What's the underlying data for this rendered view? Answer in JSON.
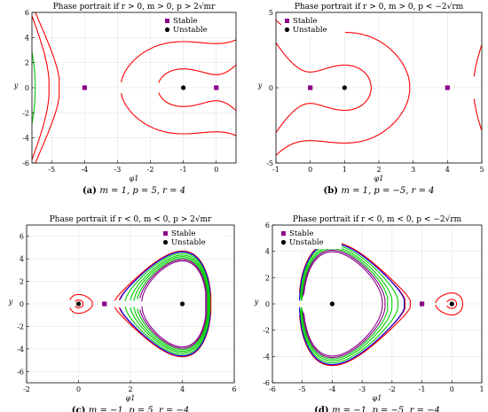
{
  "chart_data": [
    {
      "type": "line",
      "panel": "a",
      "title": "Phase portrait if r > 0, m > 0, p > 2√mr",
      "caption_tag": "(a)",
      "caption": "m = 1, p = 5, r = 4",
      "xlabel": "φ1",
      "ylabel": "y",
      "xlim": [
        -5.6,
        0.6
      ],
      "ylim": [
        -6,
        6
      ],
      "xticks": [
        "-5",
        "-4",
        "-3",
        "-2",
        "-1",
        "0"
      ],
      "yticks": [
        "-6",
        "-4",
        "-2",
        "0",
        "2",
        "4",
        "6"
      ],
      "grid": true,
      "legend": {
        "position": "top-right",
        "items": [
          "Stable",
          "Unstable"
        ]
      },
      "equilibria": {
        "stable": [
          [
            -4,
            0
          ],
          [
            0,
            0
          ]
        ],
        "unstable": [
          [
            -1,
            0
          ]
        ]
      },
      "series": [
        {
          "color": "#00cc00",
          "values": [
            2,
            3.2,
            4.1,
            4.5
          ]
        },
        {
          "color": "#ff0000",
          "values": [
            0.4,
            0.9,
            4.7,
            5.0
          ]
        },
        {
          "color": "#0000ff",
          "values": [
            4.62
          ]
        },
        {
          "color": "#00cccc",
          "values": [
            4.58
          ]
        }
      ]
    },
    {
      "type": "line",
      "panel": "b",
      "title": "Phase portrait if r > 0, m > 0, p < −2√rm",
      "caption_tag": "(b)",
      "caption": "m = 1, p = −5, r = 4",
      "xlabel": "φ1",
      "ylabel": "y",
      "xlim": [
        -1,
        5
      ],
      "ylim": [
        -5,
        5
      ],
      "xticks": [
        "-1",
        "0",
        "1",
        "2",
        "3",
        "4",
        "5"
      ],
      "yticks": [
        "-5",
        "0",
        "5"
      ],
      "grid": true,
      "legend": {
        "position": "top-left",
        "items": [
          "Stable",
          "Unstable"
        ]
      },
      "equilibria": {
        "stable": [
          [
            0,
            0
          ],
          [
            4,
            0
          ]
        ],
        "unstable": [
          [
            1,
            0
          ]
        ]
      },
      "series": [
        {
          "color": "#ff0000",
          "values": [
            0.4,
            0.9,
            1.8,
            2.7,
            3.6,
            4.3
          ]
        },
        {
          "color": "#00cc00",
          "values": [
            4.7,
            4.9
          ]
        },
        {
          "color": "#0000ff",
          "values": [
            4.62
          ]
        },
        {
          "color": "#00cccc",
          "values": [
            4.58
          ]
        }
      ]
    },
    {
      "type": "line",
      "panel": "c",
      "title": "Phase portrait if r < 0, m < 0, p > 2√mr",
      "caption_tag": "(c)",
      "caption": "m = −1, p = 5, r = −4",
      "xlabel": "φ1",
      "ylabel": "y",
      "xlim": [
        -2,
        6
      ],
      "ylim": [
        -7,
        7
      ],
      "xticks": [
        "-2",
        "0",
        "2",
        "4",
        "6"
      ],
      "yticks": [
        "-6",
        "-4",
        "-2",
        "0",
        "2",
        "4",
        "6"
      ],
      "grid": true,
      "legend": {
        "position": "top-right",
        "items": [
          "Stable",
          "Unstable"
        ]
      },
      "equilibria": {
        "stable": [
          [
            1,
            0
          ]
        ],
        "unstable": [
          [
            0,
            0
          ],
          [
            4,
            0
          ]
        ]
      },
      "series": [
        {
          "color": "#ff0000",
          "values": [
            0.4,
            0.9
          ]
        },
        {
          "color": "#0000ff",
          "values": [
            1.0
          ]
        },
        {
          "color": "#00cc00",
          "values": [
            2,
            3.2,
            4.2,
            5.2
          ]
        },
        {
          "color": "#880088",
          "values": [
            6.0,
            6.8
          ]
        }
      ]
    },
    {
      "type": "line",
      "panel": "d",
      "title": "Phase portrait if r < 0, m < 0, p < −2√rm",
      "caption_tag": "(d)",
      "caption": "m = −1, p = −5, r = −4",
      "xlabel": "φ1",
      "ylabel": "y",
      "xlim": [
        -6,
        1
      ],
      "ylim": [
        -6,
        6
      ],
      "xticks": [
        "-6",
        "-5",
        "-4",
        "-3",
        "-2",
        "-1",
        "0",
        "1"
      ],
      "yticks": [
        "-6",
        "-4",
        "-2",
        "0",
        "2",
        "4",
        "6"
      ],
      "grid": true,
      "legend": {
        "position": "top-left",
        "items": [
          "Stable",
          "Unstable"
        ]
      },
      "equilibria": {
        "stable": [
          [
            -1,
            0
          ]
        ],
        "unstable": [
          [
            0,
            0
          ],
          [
            -4,
            0
          ]
        ]
      },
      "series": [
        {
          "color": "#ff0000",
          "values": [
            0.4,
            0.9
          ]
        },
        {
          "color": "#0000ff",
          "values": [
            1.0
          ]
        },
        {
          "color": "#00cc00",
          "values": [
            2,
            3.2,
            4.2
          ]
        },
        {
          "color": "#880088",
          "values": [
            5.0,
            5.8
          ]
        }
      ]
    }
  ]
}
